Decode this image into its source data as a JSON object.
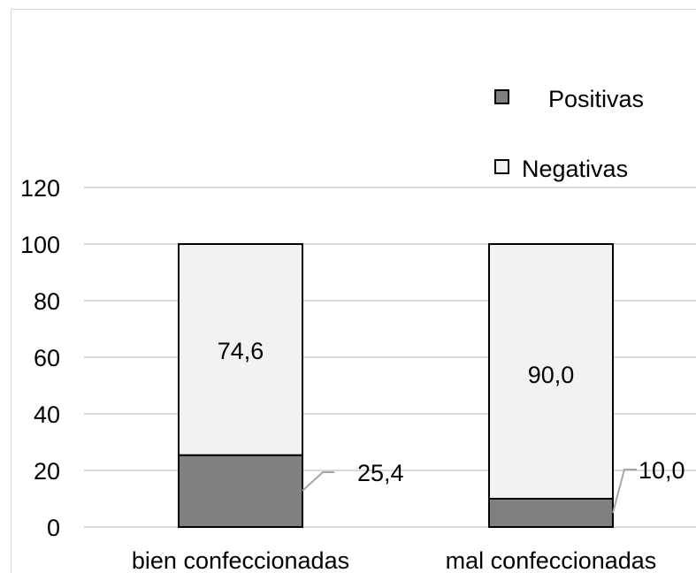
{
  "chart_data": {
    "type": "bar",
    "stacked": true,
    "categories": [
      "bien confeccionadas",
      "mal confeccionadas"
    ],
    "series": [
      {
        "name": "Positivas",
        "values": [
          25.4,
          10.0
        ],
        "labels": [
          "25,4",
          "10,0"
        ],
        "color": "#808080"
      },
      {
        "name": "Negativas",
        "values": [
          74.6,
          90.0
        ],
        "labels": [
          "74,6",
          "90,0"
        ],
        "color": "#f2f2f2"
      }
    ],
    "title": "",
    "xlabel": "",
    "ylabel": "",
    "ylim": [
      0,
      120
    ],
    "yticks": [
      0,
      20,
      40,
      60,
      80,
      100,
      120
    ],
    "grid": true,
    "legend_position": "top-right"
  }
}
